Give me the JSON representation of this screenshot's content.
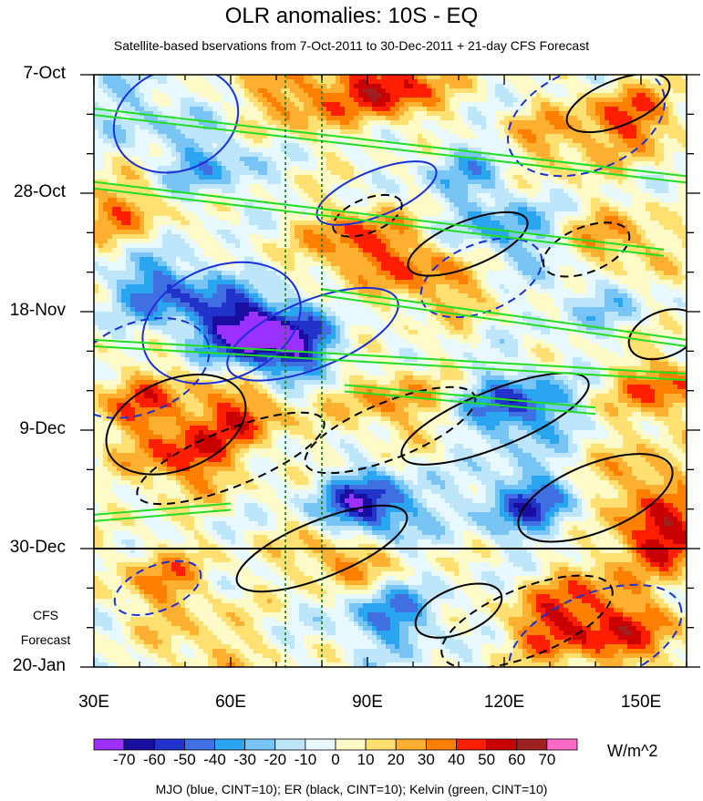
{
  "chart_data": {
    "type": "heatmap",
    "title": "OLR anomalies: 10S - EQ",
    "subtitle": "Satellite-based bservations from 7-Oct-2011 to 30-Dec-2011 + 21-day CFS Forecast",
    "x_ticks": [
      "30E",
      "60E",
      "90E",
      "120E",
      "150E"
    ],
    "x_tick_values": [
      30,
      60,
      90,
      120,
      150
    ],
    "xlim": [
      30,
      160
    ],
    "y_ticks": [
      "7-Oct",
      "28-Oct",
      "18-Nov",
      "9-Dec",
      "30-Dec",
      "20-Jan"
    ],
    "y_tick_days": [
      0,
      21,
      42,
      63,
      84,
      105
    ],
    "ylim_days": [
      0,
      105
    ],
    "forecast_start_day": 84,
    "forecast_label_line1": "CFS",
    "forecast_label_line2": "Forecast",
    "reference_longitudes": [
      72,
      80
    ],
    "colorbar": {
      "levels": [
        "-70",
        "-60",
        "-50",
        "-40",
        "-30",
        "-20",
        "-10",
        "0",
        "10",
        "20",
        "30",
        "40",
        "50",
        "60",
        "70"
      ],
      "colors": [
        "#9b30ff",
        "#1a0ea0",
        "#2233cc",
        "#3f6fe0",
        "#2aa5f0",
        "#77c4f5",
        "#bde6fb",
        "#e8f8ff",
        "#fffbc8",
        "#ffe070",
        "#ffb030",
        "#ff8000",
        "#ff1e00",
        "#c80000",
        "#9e2020",
        "#ff6ac8"
      ],
      "units": "W/m^2"
    },
    "contour_legend": "MJO (blue, CINT=10); ER (black, CINT=10); Kelvin (green, CINT=10)",
    "anomaly_features": [
      {
        "lon": 95,
        "day": 2,
        "value": 55
      },
      {
        "lon": 75,
        "day": 4,
        "value": 35
      },
      {
        "lon": 148,
        "day": 8,
        "value": 40
      },
      {
        "lon": 40,
        "day": 6,
        "value": -20
      },
      {
        "lon": 55,
        "day": 16,
        "value": -30
      },
      {
        "lon": 130,
        "day": 12,
        "value": 25
      },
      {
        "lon": 112,
        "day": 17,
        "value": -25
      },
      {
        "lon": 35,
        "day": 24,
        "value": 30
      },
      {
        "lon": 88,
        "day": 30,
        "value": 45
      },
      {
        "lon": 120,
        "day": 28,
        "value": -35
      },
      {
        "lon": 145,
        "day": 30,
        "value": 30
      },
      {
        "lon": 45,
        "day": 38,
        "value": -45
      },
      {
        "lon": 62,
        "day": 44,
        "value": -60
      },
      {
        "lon": 72,
        "day": 48,
        "value": -65
      },
      {
        "lon": 105,
        "day": 36,
        "value": 35
      },
      {
        "lon": 140,
        "day": 40,
        "value": -20
      },
      {
        "lon": 155,
        "day": 56,
        "value": 40
      },
      {
        "lon": 40,
        "day": 58,
        "value": 35
      },
      {
        "lon": 62,
        "day": 60,
        "value": 40
      },
      {
        "lon": 95,
        "day": 58,
        "value": 30
      },
      {
        "lon": 123,
        "day": 59,
        "value": -55
      },
      {
        "lon": 50,
        "day": 68,
        "value": 45
      },
      {
        "lon": 90,
        "day": 77,
        "value": -70
      },
      {
        "lon": 125,
        "day": 76,
        "value": -50
      },
      {
        "lon": 150,
        "day": 72,
        "value": 30
      },
      {
        "lon": 155,
        "day": 82,
        "value": 55
      },
      {
        "lon": 85,
        "day": 85,
        "value": 40
      },
      {
        "lon": 45,
        "day": 90,
        "value": 30
      },
      {
        "lon": 140,
        "day": 92,
        "value": 25
      },
      {
        "lon": 95,
        "day": 96,
        "value": -40
      },
      {
        "lon": 132,
        "day": 98,
        "value": 45
      },
      {
        "lon": 150,
        "day": 100,
        "value": 35
      },
      {
        "lon": 55,
        "day": 102,
        "value": 20
      }
    ],
    "mjo_contours": [
      {
        "lon": 48,
        "day": 8,
        "dlon": 14,
        "dday": 9,
        "solid": true
      },
      {
        "lon": 40,
        "day": 52,
        "dlon": 16,
        "dday": 8,
        "solid": false
      },
      {
        "lon": 58,
        "day": 44,
        "dlon": 18,
        "dday": 10,
        "solid": true
      },
      {
        "lon": 78,
        "day": 46,
        "dlon": 20,
        "dday": 6,
        "solid": true
      },
      {
        "lon": 138,
        "day": 8,
        "dlon": 18,
        "dday": 9,
        "solid": false
      },
      {
        "lon": 92,
        "day": 21,
        "dlon": 14,
        "dday": 4,
        "solid": true
      },
      {
        "lon": 115,
        "day": 36,
        "dlon": 14,
        "dday": 6,
        "solid": false
      },
      {
        "lon": 44,
        "day": 91,
        "dlon": 10,
        "dday": 4,
        "solid": false
      },
      {
        "lon": 140,
        "day": 100,
        "dlon": 20,
        "dday": 8,
        "solid": false
      }
    ],
    "er_contours": [
      {
        "lon": 112,
        "day": 30,
        "dlon": 14,
        "dday": 4,
        "solid": true
      },
      {
        "lon": 138,
        "day": 31,
        "dlon": 10,
        "dday": 4,
        "solid": false
      },
      {
        "lon": 145,
        "day": 5,
        "dlon": 12,
        "dday": 4,
        "solid": true
      },
      {
        "lon": 118,
        "day": 61,
        "dlon": 22,
        "dday": 5,
        "solid": true
      },
      {
        "lon": 95,
        "day": 63,
        "dlon": 20,
        "dday": 5,
        "solid": false
      },
      {
        "lon": 60,
        "day": 68,
        "dlon": 22,
        "dday": 5,
        "solid": false
      },
      {
        "lon": 48,
        "day": 62,
        "dlon": 16,
        "dday": 8,
        "solid": true
      },
      {
        "lon": 140,
        "day": 75,
        "dlon": 18,
        "dday": 6,
        "solid": true
      },
      {
        "lon": 80,
        "day": 84,
        "dlon": 20,
        "dday": 5,
        "solid": true
      },
      {
        "lon": 110,
        "day": 95,
        "dlon": 10,
        "dday": 4,
        "solid": true
      },
      {
        "lon": 125,
        "day": 97,
        "dlon": 20,
        "dday": 6,
        "solid": false
      },
      {
        "lon": 155,
        "day": 46,
        "dlon": 8,
        "dday": 4,
        "solid": true
      },
      {
        "lon": 90,
        "day": 25,
        "dlon": 8,
        "dday": 3,
        "solid": false
      }
    ],
    "kelvin_lines": [
      {
        "lon1": 30,
        "day1": 6,
        "lon2": 160,
        "day2": 18
      },
      {
        "lon1": 30,
        "day1": 19,
        "lon2": 155,
        "day2": 31
      },
      {
        "lon1": 30,
        "day1": 47,
        "lon2": 160,
        "day2": 53
      },
      {
        "lon1": 80,
        "day1": 38,
        "lon2": 160,
        "day2": 47
      },
      {
        "lon1": 85,
        "day1": 55,
        "lon2": 140,
        "day2": 59
      },
      {
        "lon1": 30,
        "day1": 78,
        "lon2": 60,
        "day2": 76
      }
    ]
  }
}
